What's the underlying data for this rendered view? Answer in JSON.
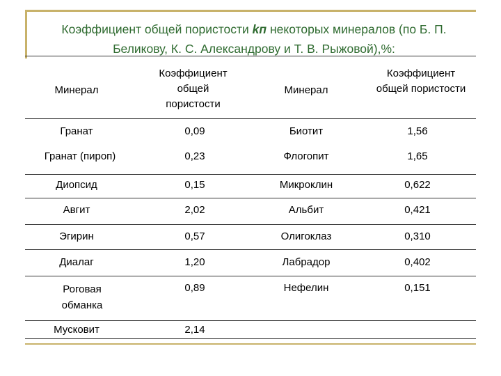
{
  "title": {
    "before": "Коэффициент общей пористости ",
    "coef": "kп",
    "after": " некоторых минералов (по Б. П. Беликову, К. С. Александрову и Т. В. Рыжовой),%:"
  },
  "headers": {
    "mineral1": "Минерал",
    "porosity1": "Коэффициент общей пористости",
    "mineral2": "Минерал",
    "porosity2": "Коэффициент общей пористости"
  },
  "rows": [
    {
      "m1": "Гранат",
      "v1": "0,09",
      "m2": "Биотит",
      "v2": "1,56"
    },
    {
      "m1": "Гранат (пироп)",
      "v1": "0,23",
      "m2": "Флогопит",
      "v2": "1,65"
    },
    {
      "m1": "Диопсид",
      "v1": "0,15",
      "m2": "Микроклин",
      "v2": "0,622"
    },
    {
      "m1": "Авгит",
      "v1": "2,02",
      "m2": "Альбит",
      "v2": "0,421"
    },
    {
      "m1": "Эгирин",
      "v1": "0,57",
      "m2": "Олигоклаз",
      "v2": "0,310"
    },
    {
      "m1": "Диалаг",
      "v1": "1,20",
      "m2": "Лабрадор",
      "v2": "0,402"
    },
    {
      "m1": "Роговая обманка",
      "v1": "0,89",
      "m2": "Нефелин",
      "v2": "0,151"
    },
    {
      "m1": "Мусковит",
      "v1": "2,14",
      "m2": "",
      "v2": ""
    }
  ]
}
